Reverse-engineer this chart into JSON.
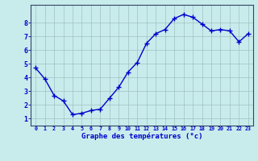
{
  "hours": [
    0,
    1,
    2,
    3,
    4,
    5,
    6,
    7,
    8,
    9,
    10,
    11,
    12,
    13,
    14,
    15,
    16,
    17,
    18,
    19,
    20,
    21,
    22,
    23
  ],
  "temps": [
    4.7,
    3.9,
    2.7,
    2.3,
    1.3,
    1.4,
    1.6,
    1.7,
    2.5,
    3.3,
    4.4,
    5.1,
    6.5,
    7.2,
    7.5,
    8.3,
    8.6,
    8.4,
    7.9,
    7.4,
    7.5,
    7.4,
    6.6,
    7.2
  ],
  "line_color": "#0000cc",
  "bg_color": "#c8ecec",
  "grid_color": "#a0c0c0",
  "xlabel": "Graphe des températures (°c)",
  "xlabel_color": "#0000cc",
  "tick_color": "#0000cc",
  "yticks": [
    1,
    2,
    3,
    4,
    5,
    6,
    7,
    8
  ],
  "ylim": [
    0.5,
    9.3
  ],
  "xlim": [
    -0.5,
    23.5
  ],
  "marker": "+",
  "marker_size": 4,
  "line_width": 1.0
}
